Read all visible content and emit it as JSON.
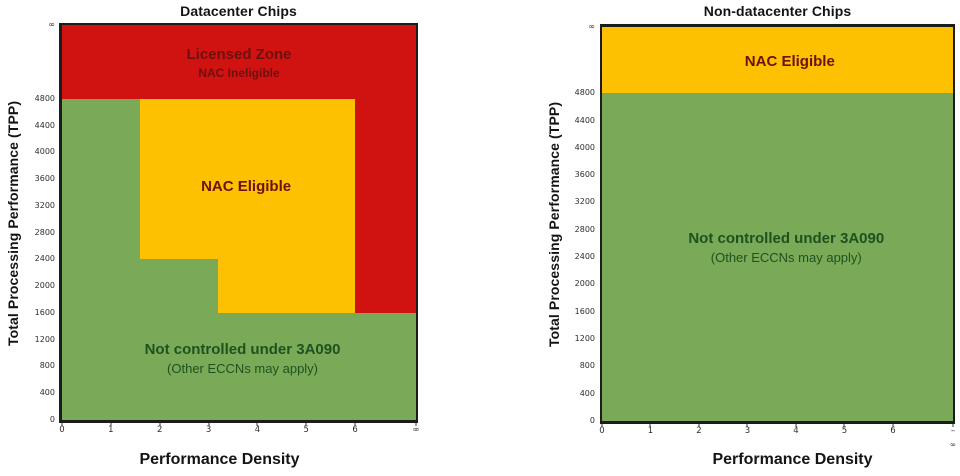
{
  "colors": {
    "red": "#d01310",
    "gold": "#fdc101",
    "green": "#7aaa58",
    "plot_border": "#1c1c1c",
    "maroon_text": "#6e100f",
    "dark_green_text": "#1f511f"
  },
  "chart_data": [
    {
      "type": "area",
      "title": "Datacenter Chips",
      "xlabel": "Performance Density",
      "ylabel": "Total Processing Performance (TPP)",
      "x_axis": {
        "max": 6,
        "inf_frac": 0.828,
        "note": "linear 0-6 then compressed band to infinity"
      },
      "y_axis": {
        "max": 4800,
        "inf_frac": 0.813,
        "note": "linear 0-4800 then compressed band to infinity"
      },
      "x_ticks": [
        {
          "label": "0",
          "v": 0
        },
        {
          "label": "1",
          "v": 1
        },
        {
          "label": "2",
          "v": 2
        },
        {
          "label": "3",
          "v": 3
        },
        {
          "label": "4",
          "v": 4
        },
        {
          "label": "5",
          "v": 5
        },
        {
          "label": "6",
          "v": 6
        },
        {
          "label": "∞",
          "v": "inf"
        }
      ],
      "y_ticks": [
        {
          "label": "∞",
          "v": "inf"
        },
        {
          "label": "4800",
          "v": 4800
        },
        {
          "label": "4400",
          "v": 4400
        },
        {
          "label": "4000",
          "v": 4000
        },
        {
          "label": "3600",
          "v": 3600
        },
        {
          "label": "3200",
          "v": 3200
        },
        {
          "label": "2800",
          "v": 2800
        },
        {
          "label": "2400",
          "v": 2400
        },
        {
          "label": "2000",
          "v": 2000
        },
        {
          "label": "1600",
          "v": 1600
        },
        {
          "label": "1200",
          "v": 1200
        },
        {
          "label": "800",
          "v": 800
        },
        {
          "label": "400",
          "v": 400
        },
        {
          "label": "0",
          "v": 0
        }
      ],
      "zones": [
        {
          "name": "licensed-zone",
          "color": "red",
          "rects": [
            {
              "x0": 0,
              "x1": "inf",
              "y0": 4800,
              "y1": "inf"
            },
            {
              "x0": 6,
              "x1": "inf",
              "y0": 1600,
              "y1": 4800
            }
          ]
        },
        {
          "name": "nac-eligible-zone",
          "color": "gold",
          "rects": [
            {
              "x0": 1.6,
              "x1": 6,
              "y0": 2400,
              "y1": 4800
            },
            {
              "x0": 3.2,
              "x1": 6,
              "y0": 1600,
              "y1": 2400
            }
          ]
        },
        {
          "name": "not-controlled-zone",
          "color": "green",
          "rects": [
            {
              "x0": 0,
              "x1": 1.6,
              "y0": 0,
              "y1": 4800
            },
            {
              "x0": 1.6,
              "x1": 3.2,
              "y0": 0,
              "y1": 2400
            },
            {
              "x0": 3.2,
              "x1": "inf",
              "y0": 0,
              "y1": 1600
            }
          ]
        }
      ],
      "zone_labels": [
        {
          "name": "licensed-zone-label",
          "cx_pct": 50,
          "cy_pct": 90.5,
          "lines": [
            {
              "text": "Licensed Zone",
              "cls": "zl-t maroon"
            },
            {
              "text": "NAC Ineligible",
              "cls": "zl-s1 maroon"
            }
          ]
        },
        {
          "name": "nac-eligible-label",
          "cx_pct": 52,
          "cy_pct": 59,
          "lines": [
            {
              "text": "NAC Eligible",
              "cls": "zl-t maroon"
            }
          ]
        },
        {
          "name": "not-controlled-label",
          "cx_pct": 51,
          "cy_pct": 15.5,
          "lines": [
            {
              "text": "Not controlled under 3A090",
              "cls": "zl-t dkgreen"
            },
            {
              "text": "(Other ECCNs may apply)",
              "cls": "zl-s2 dkgreen"
            }
          ]
        }
      ]
    },
    {
      "type": "area",
      "title": "Non-datacenter Chips",
      "xlabel": "Performance Density",
      "ylabel": "Total Processing Performance (TPP)",
      "x_axis": {
        "max": 6,
        "inf_frac": 0.829,
        "note": "linear 0-6 then compressed band to infinity"
      },
      "y_axis": {
        "max": 4800,
        "inf_frac": 0.832,
        "note": "linear 0-4800 then compressed band to infinity"
      },
      "x_ticks": [
        {
          "label": "0",
          "v": 0
        },
        {
          "label": "1",
          "v": 1
        },
        {
          "label": "2",
          "v": 2
        },
        {
          "label": "3",
          "v": 3
        },
        {
          "label": "4",
          "v": 4
        },
        {
          "label": "5",
          "v": 5
        },
        {
          "label": "6",
          "v": 6
        },
        {
          "label": "–",
          "sub": "∞",
          "v": "inf"
        }
      ],
      "y_ticks": [
        {
          "label": "∞",
          "v": "inf"
        },
        {
          "label": "4800",
          "v": 4800
        },
        {
          "label": "4400",
          "v": 4400
        },
        {
          "label": "4000",
          "v": 4000
        },
        {
          "label": "3600",
          "v": 3600
        },
        {
          "label": "3200",
          "v": 3200
        },
        {
          "label": "2800",
          "v": 2800
        },
        {
          "label": "2400",
          "v": 2400
        },
        {
          "label": "2000",
          "v": 2000
        },
        {
          "label": "1600",
          "v": 1600
        },
        {
          "label": "1200",
          "v": 1200
        },
        {
          "label": "800",
          "v": 800
        },
        {
          "label": "400",
          "v": 400
        },
        {
          "label": "0",
          "v": 0
        }
      ],
      "zones": [
        {
          "name": "nac-eligible-zone",
          "color": "gold",
          "rects": [
            {
              "x0": 0,
              "x1": "inf",
              "y0": 4800,
              "y1": "inf"
            }
          ]
        },
        {
          "name": "not-controlled-zone",
          "color": "green",
          "rects": [
            {
              "x0": 0,
              "x1": "inf",
              "y0": 0,
              "y1": 4800
            }
          ]
        }
      ],
      "zone_labels": [
        {
          "name": "nac-eligible-label",
          "cx_pct": 53.5,
          "cy_pct": 91,
          "lines": [
            {
              "text": "NAC Eligible",
              "cls": "zl-t maroon"
            }
          ]
        },
        {
          "name": "not-controlled-label",
          "cx_pct": 52.5,
          "cy_pct": 44,
          "lines": [
            {
              "text": "Not controlled under 3A090",
              "cls": "zl-t dkgreen"
            },
            {
              "text": "(Other ECCNs may apply)",
              "cls": "zl-s2 dkgreen"
            }
          ]
        }
      ]
    }
  ]
}
